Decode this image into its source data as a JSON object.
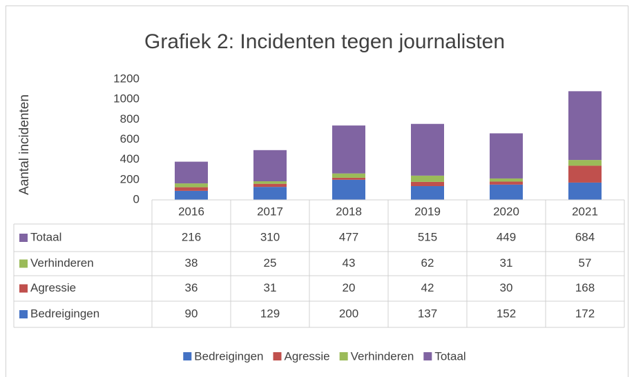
{
  "chart_data": {
    "type": "stacked_bar",
    "title": "Grafiek 2: Incidenten tegen journalisten",
    "ylabel": "Aantal incidenten",
    "categories": [
      "2016",
      "2017",
      "2018",
      "2019",
      "2020",
      "2021"
    ],
    "series": [
      {
        "name": "Bedreigingen",
        "color": "#4472c4",
        "values": [
          90,
          129,
          200,
          137,
          152,
          172
        ]
      },
      {
        "name": "Agressie",
        "color": "#c0504d",
        "values": [
          36,
          31,
          20,
          42,
          30,
          168
        ]
      },
      {
        "name": "Verhinderen",
        "color": "#9bbb59",
        "values": [
          38,
          25,
          43,
          62,
          31,
          57
        ]
      },
      {
        "name": "Totaal",
        "color": "#8064a2",
        "values": [
          216,
          310,
          477,
          515,
          449,
          684
        ]
      }
    ],
    "ylim": [
      0,
      1200
    ],
    "yticks": [
      0,
      200,
      400,
      600,
      800,
      1000,
      1200
    ],
    "grid": false,
    "legend": "bottom",
    "data_table": true
  }
}
